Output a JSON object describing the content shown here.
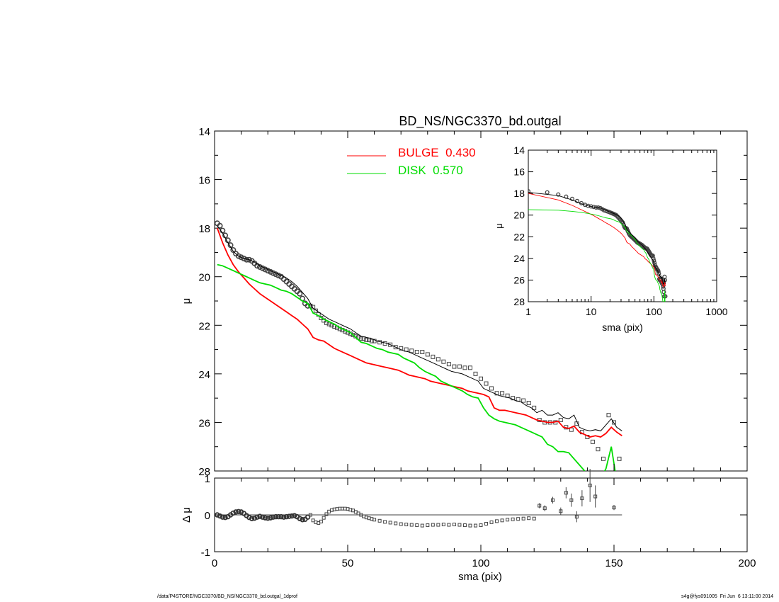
{
  "chart_data": {
    "type": "line",
    "title": "BD_NS/NGC3370_bd.outgal",
    "xlabel": "sma (pix)",
    "main_panel": {
      "ylabel": "μ",
      "xlim": [
        0,
        200
      ],
      "ylim": [
        14,
        28
      ],
      "y_inverted": true,
      "xticks": [
        "0",
        "50",
        "100",
        "150",
        "200"
      ],
      "yticks": [
        "14",
        "16",
        "18",
        "20",
        "22",
        "24",
        "26",
        "28"
      ],
      "legend": [
        {
          "label": "BULGE  0.430",
          "color": "#ff0000"
        },
        {
          "label": "DISK  0.570",
          "color": "#00dd00"
        }
      ],
      "series": [
        {
          "name": "data",
          "style": "points",
          "color": "#555555",
          "x": [
            1,
            2,
            3,
            4,
            5,
            6,
            7,
            8,
            9,
            10,
            11,
            12,
            13,
            14,
            15,
            16,
            17,
            18,
            19,
            20,
            21,
            22,
            23,
            24,
            25,
            26,
            27,
            28,
            29,
            30,
            31,
            32,
            33,
            34,
            35,
            36,
            37,
            38,
            39,
            40,
            41,
            42,
            43,
            44,
            45,
            46,
            47,
            48,
            49,
            50,
            51,
            52,
            53,
            54,
            55,
            56,
            57,
            58,
            59,
            60,
            62,
            64,
            66,
            68,
            70,
            72,
            74,
            76,
            78,
            80,
            82,
            84,
            86,
            88,
            90,
            92,
            94,
            96,
            98,
            100,
            102,
            104,
            106,
            108,
            110,
            112,
            114,
            116,
            118,
            120,
            122,
            124,
            126,
            128,
            130,
            132,
            134,
            136,
            138,
            140,
            142,
            144,
            146,
            148,
            150,
            152
          ],
          "y": [
            17.8,
            17.9,
            18.1,
            18.3,
            18.5,
            18.7,
            18.9,
            19.05,
            19.15,
            19.2,
            19.25,
            19.3,
            19.3,
            19.35,
            19.45,
            19.55,
            19.6,
            19.65,
            19.7,
            19.75,
            19.8,
            19.85,
            19.9,
            19.95,
            20.0,
            20.1,
            20.2,
            20.3,
            20.4,
            20.5,
            20.6,
            20.7,
            20.9,
            21.1,
            21.2,
            21.2,
            21.25,
            21.4,
            21.55,
            21.7,
            21.8,
            21.9,
            21.95,
            22.0,
            22.05,
            22.1,
            22.15,
            22.2,
            22.25,
            22.3,
            22.35,
            22.4,
            22.45,
            22.5,
            22.55,
            22.55,
            22.6,
            22.6,
            22.65,
            22.65,
            22.7,
            22.75,
            22.8,
            22.9,
            22.95,
            23.0,
            23.05,
            23.1,
            23.1,
            23.2,
            23.3,
            23.4,
            23.5,
            23.6,
            23.7,
            23.7,
            23.75,
            23.75,
            24.0,
            24.2,
            24.4,
            24.6,
            24.8,
            24.8,
            24.9,
            25.0,
            25.05,
            25.1,
            25.2,
            25.4,
            25.9,
            26.0,
            26.0,
            26.0,
            25.9,
            26.2,
            26.3,
            26.05,
            26.4,
            26.6,
            26.8,
            27.1,
            27.5,
            25.7,
            26.0,
            27.5
          ]
        },
        {
          "name": "model",
          "style": "line",
          "color": "#000000",
          "x": [
            1,
            3,
            5,
            7,
            9,
            11,
            13,
            15,
            17,
            19,
            21,
            23,
            25,
            27,
            29,
            31,
            33,
            35,
            37,
            39,
            41,
            43,
            45,
            47,
            49,
            51,
            53,
            55,
            57,
            59,
            61,
            63,
            65,
            67,
            69,
            71,
            73,
            75,
            77,
            79,
            81,
            83,
            85,
            87,
            89,
            91,
            93,
            95,
            97,
            99,
            101,
            103,
            105,
            107,
            109,
            111,
            113,
            115,
            117,
            119,
            121,
            123,
            125,
            127,
            129,
            131,
            133,
            135,
            137,
            139,
            141,
            143,
            145,
            147,
            149,
            151,
            153
          ],
          "y": [
            17.9,
            18.2,
            18.6,
            18.95,
            19.15,
            19.25,
            19.3,
            19.4,
            19.55,
            19.65,
            19.75,
            19.85,
            19.95,
            20.05,
            20.2,
            20.4,
            20.65,
            20.9,
            21.3,
            21.45,
            21.6,
            21.75,
            21.85,
            21.95,
            22.05,
            22.15,
            22.3,
            22.45,
            22.5,
            22.55,
            22.65,
            22.7,
            22.75,
            22.85,
            22.95,
            23.05,
            23.1,
            23.2,
            23.3,
            23.4,
            23.5,
            23.6,
            23.7,
            23.8,
            23.9,
            23.95,
            24.0,
            24.1,
            24.2,
            24.3,
            24.6,
            24.7,
            24.8,
            24.9,
            24.95,
            25.0,
            25.1,
            25.15,
            25.3,
            25.4,
            25.6,
            25.5,
            25.7,
            25.7,
            25.6,
            25.8,
            25.85,
            25.7,
            26.2,
            26.3,
            26.35,
            26.3,
            26.35,
            26.1,
            25.85,
            26.2,
            26.35
          ]
        },
        {
          "name": "bulge",
          "style": "line",
          "color": "#ff0000",
          "x": [
            1,
            3,
            5,
            7,
            9,
            11,
            13,
            15,
            17,
            19,
            21,
            23,
            25,
            27,
            29,
            31,
            33,
            35,
            37,
            39,
            41,
            43,
            45,
            47,
            49,
            51,
            53,
            55,
            57,
            59,
            61,
            63,
            65,
            67,
            69,
            71,
            73,
            75,
            77,
            79,
            81,
            83,
            85,
            87,
            89,
            91,
            93,
            95,
            97,
            99,
            101,
            103,
            105,
            107,
            109,
            111,
            113,
            115,
            117,
            119,
            121,
            123,
            125,
            127,
            129,
            131,
            133,
            135,
            137,
            139,
            141,
            143,
            145,
            147,
            149,
            151,
            153
          ],
          "y": [
            18.0,
            18.6,
            19.1,
            19.5,
            19.8,
            20.05,
            20.3,
            20.5,
            20.7,
            20.85,
            21.0,
            21.15,
            21.3,
            21.45,
            21.6,
            21.75,
            21.95,
            22.15,
            22.5,
            22.6,
            22.65,
            22.8,
            22.95,
            23.05,
            23.15,
            23.25,
            23.35,
            23.45,
            23.55,
            23.6,
            23.65,
            23.7,
            23.75,
            23.8,
            23.85,
            23.95,
            24.05,
            24.1,
            24.15,
            24.2,
            24.3,
            24.35,
            24.4,
            24.45,
            24.5,
            24.55,
            24.6,
            24.7,
            24.75,
            24.8,
            24.85,
            24.95,
            25.4,
            25.5,
            25.5,
            25.55,
            25.6,
            25.65,
            25.7,
            25.8,
            25.9,
            25.95,
            26.0,
            26.0,
            25.95,
            26.2,
            26.25,
            26.15,
            26.4,
            26.5,
            26.6,
            26.55,
            26.6,
            26.45,
            26.2,
            26.4,
            26.55
          ]
        },
        {
          "name": "disk",
          "style": "line",
          "color": "#00dd00",
          "x": [
            1,
            3,
            5,
            7,
            9,
            11,
            13,
            15,
            17,
            19,
            21,
            23,
            25,
            27,
            29,
            31,
            33,
            35,
            37,
            39,
            41,
            43,
            45,
            47,
            49,
            51,
            53,
            55,
            57,
            59,
            61,
            63,
            65,
            67,
            69,
            71,
            73,
            75,
            77,
            79,
            81,
            83,
            85,
            87,
            89,
            91,
            93,
            95,
            97,
            99,
            101,
            103,
            105,
            107,
            109,
            111,
            113,
            115,
            117,
            119,
            121,
            123,
            125,
            127,
            129,
            131,
            133,
            135,
            137,
            139,
            141,
            143,
            145,
            147,
            149,
            151,
            153
          ],
          "y": [
            19.5,
            19.55,
            19.65,
            19.75,
            19.85,
            19.95,
            20.05,
            20.15,
            20.25,
            20.3,
            20.35,
            20.45,
            20.55,
            20.6,
            20.7,
            20.85,
            21.0,
            21.1,
            21.5,
            21.6,
            21.75,
            21.85,
            21.95,
            22.1,
            22.2,
            22.3,
            22.5,
            22.7,
            22.75,
            22.85,
            22.95,
            23.0,
            23.1,
            23.15,
            23.2,
            23.35,
            23.45,
            23.55,
            23.75,
            23.9,
            24.0,
            24.1,
            24.3,
            24.4,
            24.5,
            24.6,
            24.7,
            24.85,
            24.95,
            25.0,
            25.4,
            25.7,
            25.85,
            25.95,
            26.0,
            26.05,
            26.1,
            26.2,
            26.3,
            26.4,
            26.5,
            26.6,
            26.9,
            27.0,
            27.2,
            27.2,
            27.25,
            27.5,
            27.75,
            28.0,
            28.5,
            28.4,
            28.3,
            27.9,
            27.0,
            28.4,
            28.8
          ]
        }
      ]
    },
    "residual_panel": {
      "ylabel": "Δ μ",
      "xlim": [
        0,
        200
      ],
      "ylim": [
        -1,
        1
      ],
      "yticks": [
        "-1",
        "0",
        "1"
      ],
      "zero_line": true,
      "points": {
        "x": [
          1,
          2,
          3,
          4,
          5,
          6,
          7,
          8,
          9,
          10,
          11,
          12,
          13,
          14,
          15,
          16,
          17,
          18,
          19,
          20,
          21,
          22,
          23,
          24,
          25,
          26,
          27,
          28,
          29,
          30,
          31,
          32,
          33,
          34,
          35,
          36,
          37,
          38,
          39,
          40,
          41,
          42,
          43,
          44,
          45,
          46,
          47,
          48,
          49,
          50,
          51,
          52,
          53,
          54,
          55,
          56,
          57,
          58,
          59,
          60,
          62,
          64,
          66,
          68,
          70,
          72,
          74,
          76,
          78,
          80,
          82,
          84,
          86,
          88,
          90,
          92,
          94,
          96,
          98,
          100,
          102,
          104,
          106,
          108,
          110,
          112,
          114,
          116,
          118,
          120
        ],
        "y": [
          0.0,
          -0.03,
          -0.06,
          -0.07,
          -0.05,
          0.0,
          0.05,
          0.08,
          0.09,
          0.08,
          0.04,
          -0.02,
          -0.07,
          -0.1,
          -0.09,
          -0.06,
          -0.04,
          -0.06,
          -0.08,
          -0.09,
          -0.08,
          -0.06,
          -0.05,
          -0.05,
          -0.05,
          -0.06,
          -0.05,
          -0.04,
          -0.03,
          -0.02,
          -0.05,
          -0.1,
          -0.13,
          -0.12,
          -0.06,
          0.0,
          -0.15,
          -0.2,
          -0.22,
          -0.18,
          -0.08,
          0.02,
          0.09,
          0.13,
          0.15,
          0.16,
          0.17,
          0.17,
          0.17,
          0.16,
          0.14,
          0.12,
          0.08,
          0.04,
          0.0,
          -0.04,
          -0.07,
          -0.09,
          -0.11,
          -0.13,
          -0.16,
          -0.19,
          -0.21,
          -0.23,
          -0.25,
          -0.26,
          -0.27,
          -0.28,
          -0.29,
          -0.28,
          -0.27,
          -0.27,
          -0.26,
          -0.27,
          -0.26,
          -0.27,
          -0.28,
          -0.29,
          -0.29,
          -0.28,
          -0.24,
          -0.2,
          -0.17,
          -0.15,
          -0.13,
          -0.12,
          -0.11,
          -0.1,
          -0.09,
          -0.1
        ]
      },
      "errorbars": {
        "x": [
          122,
          124,
          127,
          130,
          132,
          134,
          136,
          138,
          141,
          143,
          150
        ],
        "y": [
          0.25,
          0.18,
          0.4,
          0.1,
          0.6,
          0.4,
          -0.05,
          0.45,
          0.8,
          0.5,
          0.2
        ],
        "err": [
          0.07,
          0.08,
          0.09,
          0.1,
          0.15,
          0.18,
          0.15,
          0.22,
          0.45,
          0.3,
          0.07
        ]
      }
    },
    "inset": {
      "xlabel": "sma (pix)",
      "ylabel": "μ",
      "xscale": "log",
      "xlim": [
        1,
        1000
      ],
      "ylim": [
        14,
        28
      ],
      "y_inverted": true,
      "xticks": [
        "1",
        "10",
        "100",
        "1000"
      ],
      "yticks": [
        "14",
        "16",
        "18",
        "20",
        "22",
        "24",
        "26",
        "28"
      ]
    }
  },
  "footer": {
    "left": "/data/P4STORE/NGC3370/BD_NS/NGC3370_bd.outgal_1dprof",
    "right": "s4g@fys091005  Fri Jun  6 13:11:00 2014"
  }
}
